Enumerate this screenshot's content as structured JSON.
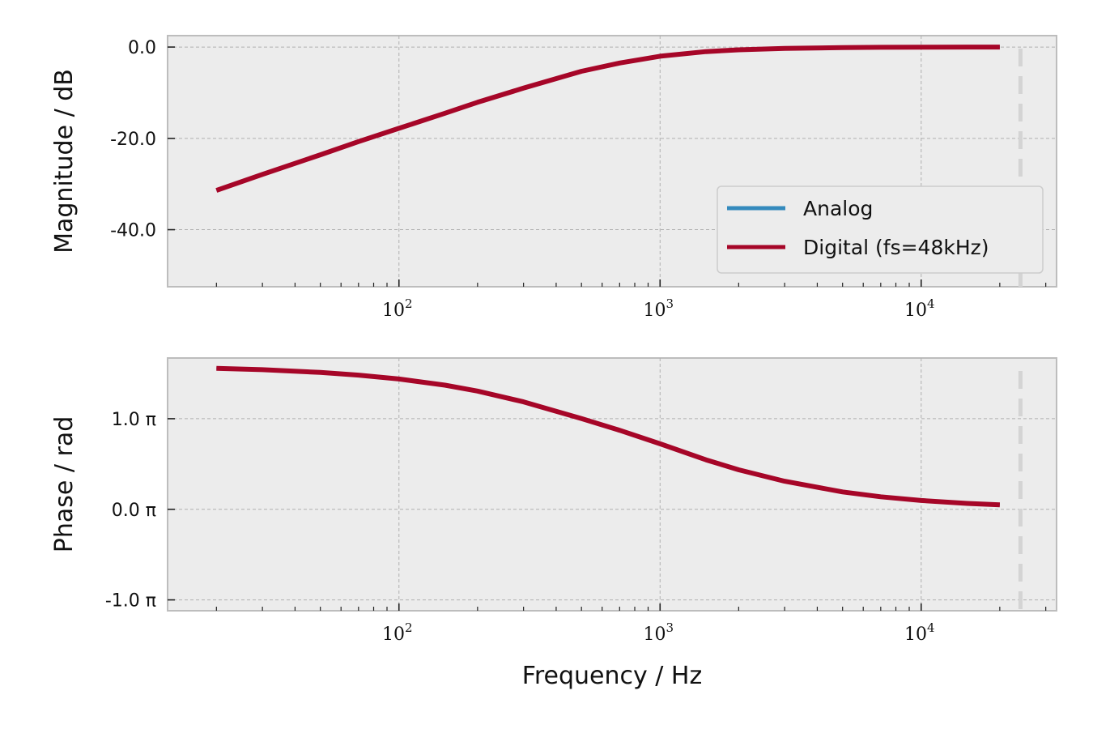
{
  "chart_data": [
    {
      "type": "line",
      "xscale": "log",
      "xlim": [
        13,
        33000
      ],
      "ylim": [
        -52.5,
        2.5
      ],
      "xticks": [
        {
          "value": 100,
          "base": "10",
          "exp": "2"
        },
        {
          "value": 1000,
          "base": "10",
          "exp": "3"
        },
        {
          "value": 10000,
          "base": "10",
          "exp": "4"
        }
      ],
      "yticks": [
        {
          "value": 0,
          "label": "0.0"
        },
        {
          "value": -20,
          "label": "-20.0"
        },
        {
          "value": -40,
          "label": "-40.0"
        }
      ],
      "ylabel": "Magnitude / dB",
      "xlabel": "",
      "grid": true,
      "legend": "lower right",
      "vline": 24000,
      "series": [
        {
          "name": "Analog",
          "color": "#348abd",
          "x": [
            20,
            30,
            50,
            70,
            100,
            150,
            200,
            300,
            500,
            700,
            1000,
            1500,
            2000,
            3000,
            5000,
            7000,
            10000,
            15000,
            20000
          ],
          "y": [
            -31.4,
            -27.9,
            -23.6,
            -20.7,
            -17.8,
            -14.5,
            -12.1,
            -9.0,
            -5.3,
            -3.5,
            -2.0,
            -1.0,
            -0.6,
            -0.3,
            -0.1,
            -0.05,
            -0.03,
            -0.01,
            0.0
          ]
        },
        {
          "name": "Digital (fs=48kHz)",
          "color": "#a60628",
          "x": [
            20,
            30,
            50,
            70,
            100,
            150,
            200,
            300,
            500,
            700,
            1000,
            1500,
            2000,
            3000,
            5000,
            7000,
            10000,
            15000,
            20000
          ],
          "y": [
            -31.4,
            -27.9,
            -23.6,
            -20.7,
            -17.8,
            -14.5,
            -12.1,
            -9.0,
            -5.3,
            -3.5,
            -2.0,
            -1.0,
            -0.6,
            -0.3,
            -0.1,
            -0.05,
            -0.03,
            -0.01,
            0.0
          ]
        }
      ]
    },
    {
      "type": "line",
      "xscale": "log",
      "xlim": [
        13,
        33000
      ],
      "ylim": [
        -1.12,
        1.67
      ],
      "xticks": [
        {
          "value": 100,
          "base": "10",
          "exp": "2"
        },
        {
          "value": 1000,
          "base": "10",
          "exp": "3"
        },
        {
          "value": 10000,
          "base": "10",
          "exp": "4"
        }
      ],
      "yticks": [
        {
          "value": 1,
          "label": "1.0 π"
        },
        {
          "value": 0,
          "label": "0.0 π"
        },
        {
          "value": -1,
          "label": "-1.0 π"
        }
      ],
      "ylabel": "Phase / rad",
      "xlabel": "Frequency / Hz",
      "grid": true,
      "vline": 24000,
      "series": [
        {
          "name": "Analog",
          "color": "#348abd",
          "x": [
            20,
            30,
            50,
            70,
            100,
            150,
            200,
            300,
            500,
            700,
            1000,
            1500,
            2000,
            3000,
            5000,
            7000,
            10000,
            15000,
            20000
          ],
          "y": [
            1.556,
            1.541,
            1.511,
            1.481,
            1.438,
            1.37,
            1.305,
            1.186,
            1.001,
            0.872,
            0.723,
            0.546,
            0.436,
            0.31,
            0.192,
            0.138,
            0.097,
            0.065,
            0.049
          ]
        },
        {
          "name": "Digital (fs=48kHz)",
          "color": "#a60628",
          "x": [
            20,
            30,
            50,
            70,
            100,
            150,
            200,
            300,
            500,
            700,
            1000,
            1500,
            2000,
            3000,
            5000,
            7000,
            10000,
            15000,
            20000
          ],
          "y": [
            1.556,
            1.541,
            1.511,
            1.481,
            1.438,
            1.37,
            1.305,
            1.186,
            1.001,
            0.872,
            0.723,
            0.546,
            0.436,
            0.31,
            0.192,
            0.138,
            0.097,
            0.065,
            0.049
          ]
        }
      ]
    }
  ]
}
